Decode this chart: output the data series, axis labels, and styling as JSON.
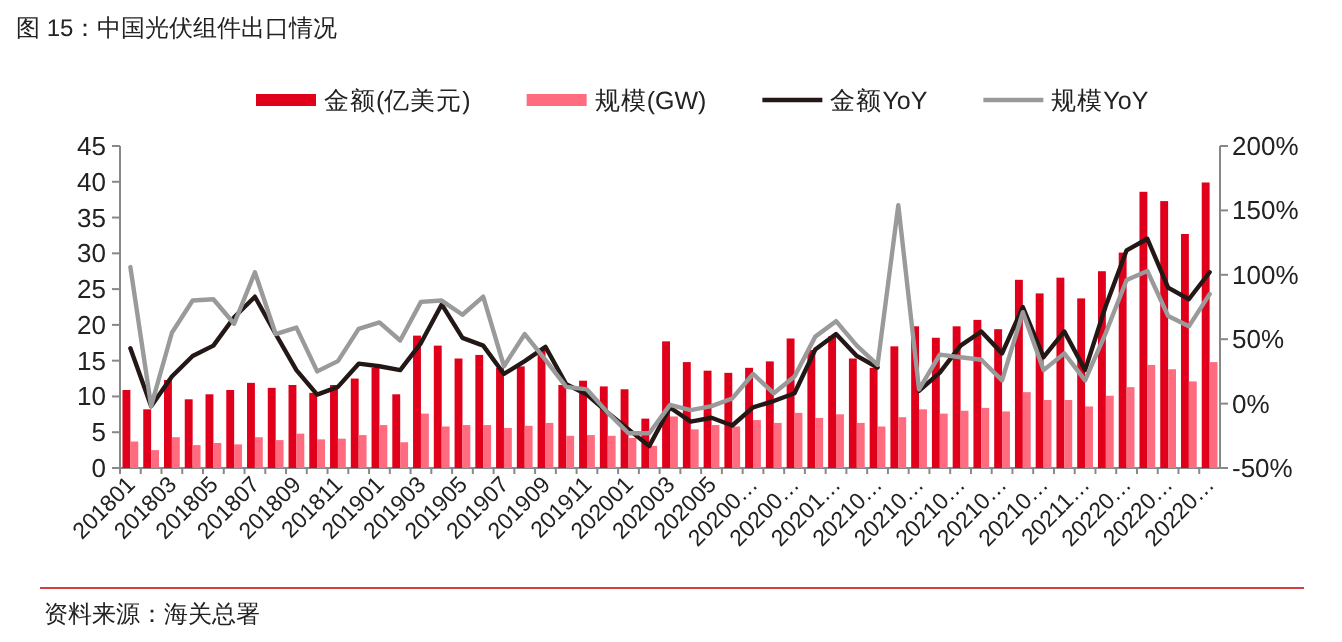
{
  "chart_data": {
    "type": "bar",
    "title": "图 15：中国光伏组件出口情况",
    "categories": [
      "201801",
      null,
      "201803",
      null,
      "201805",
      null,
      "201807",
      null,
      "201809",
      null,
      "201811",
      null,
      "201901",
      null,
      "201903",
      null,
      "201905",
      null,
      "201907",
      null,
      "201909",
      null,
      "201911",
      null,
      "202001",
      null,
      "202003",
      null,
      "202005",
      null,
      "20200…",
      null,
      "20200…",
      null,
      "20201…",
      null,
      "20210…",
      null,
      "20210…",
      null,
      "20210…",
      null,
      "20210…",
      null,
      "20210…",
      null,
      "20211…",
      null,
      "20220…",
      null,
      "20220…",
      null,
      "20220…"
    ],
    "series": [
      {
        "name": "金额(亿美元)",
        "color": "#e0001b",
        "values": [
          10.9,
          8.2,
          12.3,
          9.6,
          10.3,
          10.9,
          11.9,
          11.2,
          11.6,
          10.5,
          11.6,
          12.5,
          14.0,
          10.3,
          18.5,
          17.1,
          15.3,
          15.8,
          14.0,
          14.2,
          16.5,
          11.6,
          12.2,
          11.4,
          11.0,
          6.9,
          17.7,
          14.8,
          13.6,
          13.3,
          14.0,
          14.9,
          18.1,
          16.5,
          18.4,
          15.3,
          14.0,
          17.0,
          19.8,
          18.2,
          19.8,
          20.7,
          19.4,
          26.3,
          24.4,
          26.6,
          23.7,
          27.5,
          30.1,
          38.6,
          37.3,
          32.7,
          39.9
        ]
      },
      {
        "name": "规模(GW)",
        "color": "#ff6b7f",
        "values": [
          3.7,
          2.5,
          4.3,
          3.2,
          3.5,
          3.3,
          4.3,
          3.9,
          4.8,
          4.0,
          4.1,
          4.6,
          6.0,
          3.6,
          7.6,
          5.8,
          6.0,
          6.0,
          5.6,
          5.9,
          6.3,
          4.5,
          4.6,
          4.5,
          4.2,
          3.1,
          7.2,
          5.4,
          6.0,
          5.8,
          6.7,
          6.3,
          7.7,
          7.0,
          7.5,
          6.3,
          5.8,
          7.1,
          8.2,
          7.6,
          8.0,
          8.4,
          7.9,
          10.6,
          9.5,
          9.5,
          8.6,
          10.1,
          11.3,
          14.4,
          13.8,
          12.1,
          14.8
        ]
      },
      {
        "name": "金额YoY",
        "type": "line",
        "axis": "y2",
        "color": "#231815",
        "values": [
          43,
          -2,
          21,
          37,
          45,
          67,
          83,
          54,
          26,
          7,
          13,
          31,
          29,
          26,
          47,
          77,
          51,
          45,
          23,
          33,
          44,
          15,
          7,
          -7,
          -20,
          -33,
          -3,
          -14,
          -11,
          -17,
          -3,
          2,
          8,
          42,
          54,
          37,
          28,
          null,
          10,
          24,
          45,
          56,
          39,
          75,
          36,
          56,
          26,
          76,
          119,
          128,
          90,
          81,
          102
        ]
      },
      {
        "name": "规模YoY",
        "type": "line",
        "axis": "y2",
        "color": "#9a9a9a",
        "values": [
          106,
          -2,
          55,
          80,
          81,
          62,
          102,
          54,
          59,
          25,
          33,
          58,
          63,
          49,
          79,
          80,
          69,
          83,
          29,
          54,
          34,
          13,
          11,
          -7,
          -23,
          -23,
          -1,
          -5,
          -2,
          4,
          23,
          8,
          21,
          52,
          64,
          45,
          30,
          154,
          11,
          38,
          36,
          34,
          18,
          71,
          26,
          39,
          18,
          55,
          96,
          103,
          68,
          60,
          85
        ]
      }
    ],
    "ylim": [
      0,
      45
    ],
    "yticks": [
      0,
      5,
      10,
      15,
      20,
      25,
      30,
      35,
      40,
      45
    ],
    "y2lim": [
      -50,
      200
    ],
    "y2ticks": [
      {
        "value": -50,
        "label": "-50%"
      },
      {
        "value": 0,
        "label": "0%"
      },
      {
        "value": 50,
        "label": "50%"
      },
      {
        "value": 100,
        "label": "100%"
      },
      {
        "value": 150,
        "label": "150%"
      },
      {
        "value": 200,
        "label": "200%"
      }
    ],
    "legend": "top",
    "annotations": [
      "资料来源：海关总署"
    ]
  }
}
